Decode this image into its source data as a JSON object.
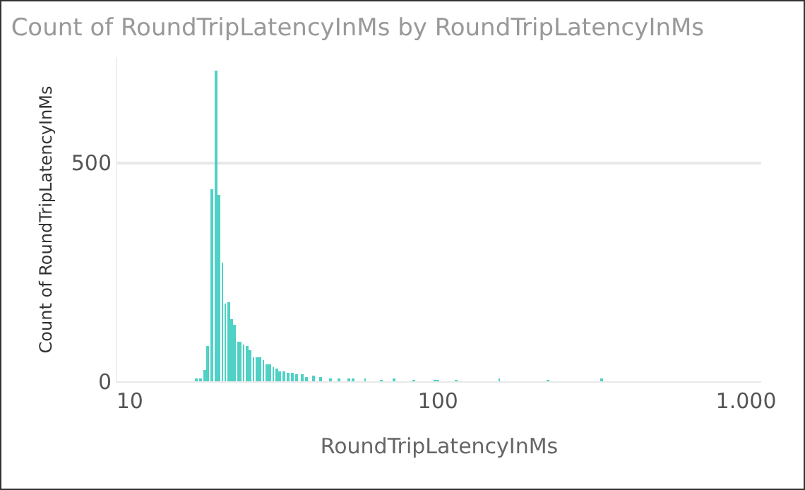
{
  "chart_data": {
    "type": "bar",
    "title": "Count of RoundTripLatencyInMs by RoundTripLatencyInMs",
    "xlabel": "RoundTripLatencyInMs",
    "ylabel": "Count of RoundTripLatencyInMs",
    "x": [
      16.4,
      17.0,
      17.5,
      17.9,
      18.5,
      19.0,
      19.5,
      20.0,
      20.4,
      20.9,
      21.4,
      21.9,
      22.5,
      22.9,
      23.4,
      24.0,
      24.6,
      25.2,
      25.8,
      26.5,
      27.1,
      27.8,
      28.5,
      29.2,
      29.9,
      30.7,
      31.5,
      32.6,
      33.7,
      34.9,
      36.2,
      37.5,
      39.5,
      41.7,
      44.7,
      47.9,
      51.4,
      53,
      58,
      65.6,
      72,
      83.6,
      98,
      100,
      115,
      158,
      228,
      339
    ],
    "values": [
      5,
      5,
      27,
      80,
      440,
      710,
      427,
      270,
      178,
      181,
      143,
      130,
      92,
      89,
      85,
      81,
      70,
      54,
      54,
      54,
      49,
      38,
      38,
      32,
      30,
      24,
      22,
      19,
      19,
      16,
      17,
      11,
      12,
      9,
      6,
      5,
      4,
      4,
      4,
      3,
      4,
      3,
      3,
      2,
      2,
      4,
      3,
      4
    ],
    "color": "#4fd1c5",
    "log": "x",
    "xlim": [
      9.1,
      1120
    ],
    "xticks": [
      10,
      100,
      {
        "value": 1000,
        "label": "1.000"
      }
    ],
    "ylim": [
      0,
      740
    ],
    "yticks": [
      0,
      500
    ],
    "grid": "y"
  }
}
